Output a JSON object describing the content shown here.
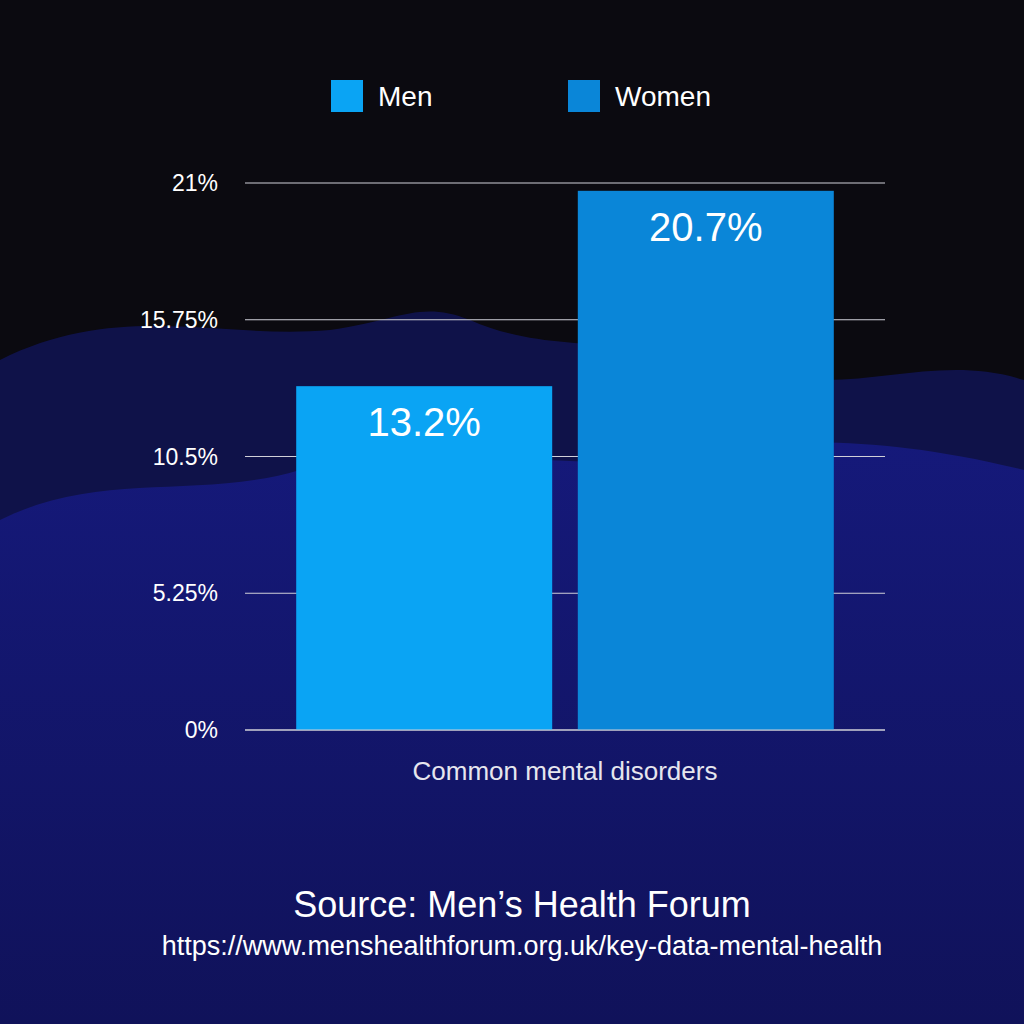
{
  "chart_data": {
    "type": "bar",
    "categories": [
      "Common mental disorders"
    ],
    "series": [
      {
        "name": "Men",
        "color": "#0aa4f4",
        "values": [
          13.2
        ],
        "value_labels": [
          "13.2%"
        ]
      },
      {
        "name": "Women",
        "color": "#0a86d8",
        "values": [
          20.7
        ],
        "value_labels": [
          "20.7%"
        ]
      }
    ],
    "ylim": [
      0,
      21
    ],
    "yticks": [
      {
        "value": 0,
        "label": "0%"
      },
      {
        "value": 5.25,
        "label": "5.25%"
      },
      {
        "value": 10.5,
        "label": "10.5%"
      },
      {
        "value": 15.75,
        "label": "15.75%"
      },
      {
        "value": 21,
        "label": "21%"
      }
    ],
    "grid": true,
    "legend": "top",
    "data_labels": true,
    "annotations": [
      "Source: Men’s Health Forum",
      "https://www.menshealthforum.org.uk/key-data-mental-health"
    ]
  }
}
